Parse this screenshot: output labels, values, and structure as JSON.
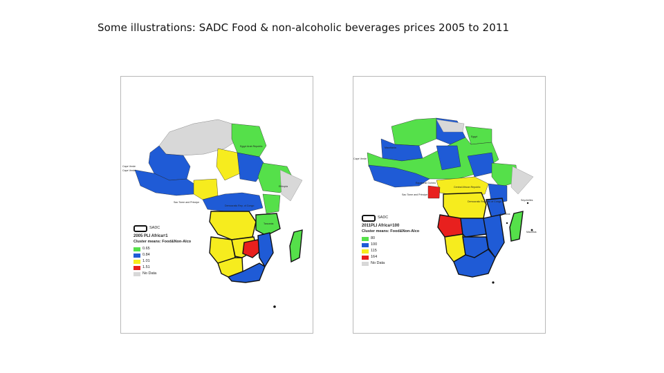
{
  "slide": {
    "title": "Some illustrations: SADC Food & non-alcoholic beverages prices 2005 to 2011"
  },
  "colors": {
    "green": "#55e04a",
    "blue": "#1f5bd6",
    "yellow": "#f6ec1e",
    "red": "#e8201e",
    "nodata": "#d8d8d8"
  },
  "maps": [
    {
      "legend_box": "SADC",
      "title": "2005 PLI Africa=1",
      "subtitle": "Cluster means: Food&Non-Alco",
      "items": [
        {
          "label": "0.65",
          "color": "#55e04a"
        },
        {
          "label": "0.84",
          "color": "#1f5bd6"
        },
        {
          "label": "1.01",
          "color": "#f6ec1e"
        },
        {
          "label": "1.51",
          "color": "#e8201e"
        },
        {
          "label": "No Data",
          "color": "#d8d8d8"
        }
      ],
      "country_labels": [
        "Egypt Arab Republic",
        "Cape Verde",
        "Cape Verde",
        "Ethiopia",
        "Sao Tome and Principe",
        "Democratic Rep. of Congo",
        "Tanzania"
      ]
    },
    {
      "legend_box": "SADC",
      "title": "2011PLI Africa=100",
      "subtitle": "Cluster means: Food&Non-Alco",
      "items": [
        {
          "label": "80",
          "color": "#55e04a"
        },
        {
          "label": "100",
          "color": "#1f5bd6"
        },
        {
          "label": "115",
          "color": "#f6ec1e"
        },
        {
          "label": "164",
          "color": "#e8201e"
        },
        {
          "label": "No Data",
          "color": "#d8d8d8"
        }
      ],
      "country_labels": [
        "Egypt",
        "Mauritania",
        "Cape Verde",
        "Equatorial Guinea",
        "Sao Tome and Principe",
        "Central African Republic",
        "Democratic Republic of Congo",
        "Seychelles",
        "Comoros",
        "Mauritius"
      ]
    }
  ]
}
